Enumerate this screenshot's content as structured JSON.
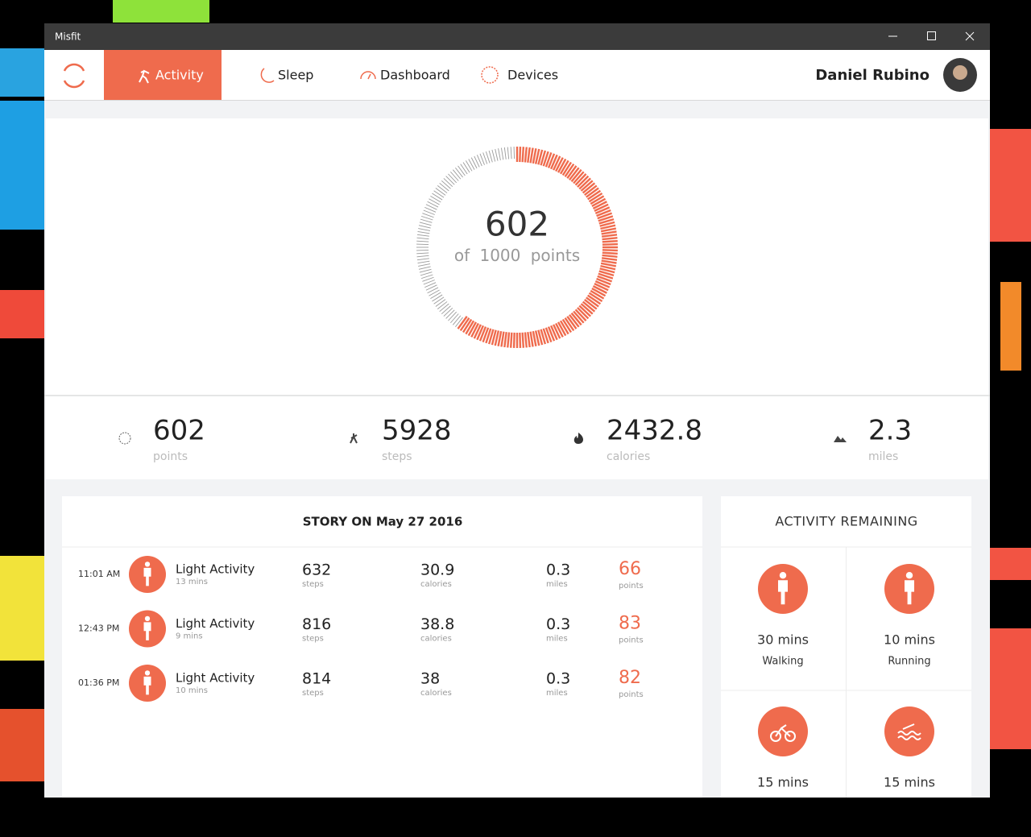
{
  "window": {
    "title": "Misfit"
  },
  "nav": {
    "items": [
      "Activity",
      "Sleep",
      "Dashboard",
      "Devices"
    ],
    "user": "Daniel Rubino"
  },
  "ring": {
    "value": 602,
    "of": "of",
    "total": 1000,
    "unit": "points"
  },
  "stats": [
    {
      "value": "602",
      "label": "points"
    },
    {
      "value": "5928",
      "label": "steps"
    },
    {
      "value": "2432.8",
      "label": "calories"
    },
    {
      "value": "2.3",
      "label": "miles"
    }
  ],
  "story": {
    "title": "STORY ON May 27 2016",
    "rows": [
      {
        "time": "11:01 AM",
        "name": "Light Activity",
        "duration": "13 mins",
        "steps": "632",
        "steps_label": "steps",
        "calories": "30.9",
        "calories_label": "calories",
        "miles": "0.3",
        "miles_label": "miles",
        "points": "66",
        "points_label": "points"
      },
      {
        "time": "12:43 PM",
        "name": "Light Activity",
        "duration": "9 mins",
        "steps": "816",
        "steps_label": "steps",
        "calories": "38.8",
        "calories_label": "calories",
        "miles": "0.3",
        "miles_label": "miles",
        "points": "83",
        "points_label": "points"
      },
      {
        "time": "01:36 PM",
        "name": "Light Activity",
        "duration": "10 mins",
        "steps": "814",
        "steps_label": "steps",
        "calories": "38",
        "calories_label": "calories",
        "miles": "0.3",
        "miles_label": "miles",
        "points": "82",
        "points_label": "points"
      }
    ]
  },
  "remaining": {
    "title": "ACTIVITY REMAINING",
    "items": [
      {
        "duration": "30 mins",
        "activity": "Walking"
      },
      {
        "duration": "10 mins",
        "activity": "Running"
      },
      {
        "duration": "15 mins"
      },
      {
        "duration": "15 mins"
      }
    ]
  }
}
